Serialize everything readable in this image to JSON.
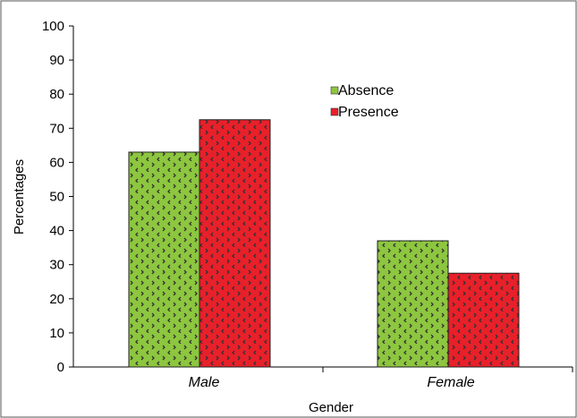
{
  "chart_data": {
    "type": "bar",
    "title": "",
    "xlabel": "Gender",
    "ylabel": "Percentages",
    "categories": [
      "Male",
      "Female"
    ],
    "series": [
      {
        "name": "Absence",
        "values": [
          63,
          37
        ],
        "color": "#8dc63f",
        "pattern": "dark arrowhead dots"
      },
      {
        "name": "Presence",
        "values": [
          72.5,
          27.5
        ],
        "color": "#e8202a",
        "pattern": "dark arrowhead dots"
      }
    ],
    "ylim": [
      0,
      100
    ],
    "yticks": [
      0,
      10,
      20,
      30,
      40,
      50,
      60,
      70,
      80,
      90,
      100
    ],
    "grid": false,
    "legend_position": "top-right"
  }
}
